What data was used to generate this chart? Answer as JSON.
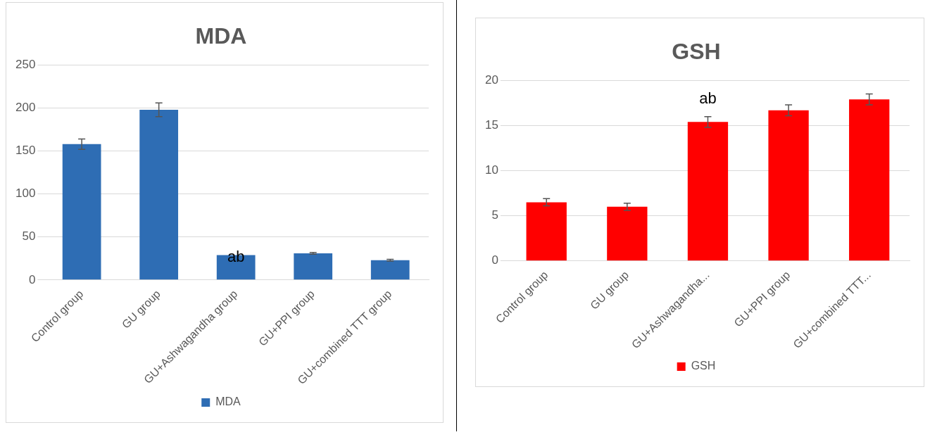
{
  "chart_data": [
    {
      "type": "bar",
      "title": "MDA",
      "categories": [
        "Control group",
        "GU group",
        "GU+Ashwagandha group",
        "GU+PPI group",
        "GU+combined TTT group"
      ],
      "series": [
        {
          "name": "MDA",
          "color": "#2e6db4",
          "values": [
            158,
            198,
            29,
            31,
            23
          ],
          "errors": [
            6,
            8,
            null,
            1,
            1
          ]
        }
      ],
      "ylim": [
        0,
        250
      ],
      "yticks": [
        0,
        50,
        100,
        150,
        200,
        250
      ],
      "grid": "y",
      "legend": "bottom",
      "annotations": [
        {
          "text": "ab",
          "x": "GU+Ashwagandha group",
          "y": 29
        }
      ]
    },
    {
      "type": "bar",
      "title": "GSH",
      "categories": [
        "Control group",
        "GU group",
        "GU+Ashwagandha...",
        "GU+PPI group",
        "GU+combined TTT..."
      ],
      "series": [
        {
          "name": "GSH",
          "color": "#ff0000",
          "values": [
            6.5,
            6,
            15.4,
            16.7,
            17.9
          ],
          "errors": [
            0.4,
            0.4,
            0.6,
            0.6,
            0.6
          ]
        }
      ],
      "ylim": [
        0,
        20
      ],
      "yticks": [
        0,
        5,
        10,
        15,
        20
      ],
      "grid": "y",
      "legend": "bottom",
      "annotations": [
        {
          "text": "ab",
          "x": "GU+Ashwagandha...",
          "y": 15.4
        }
      ]
    }
  ]
}
